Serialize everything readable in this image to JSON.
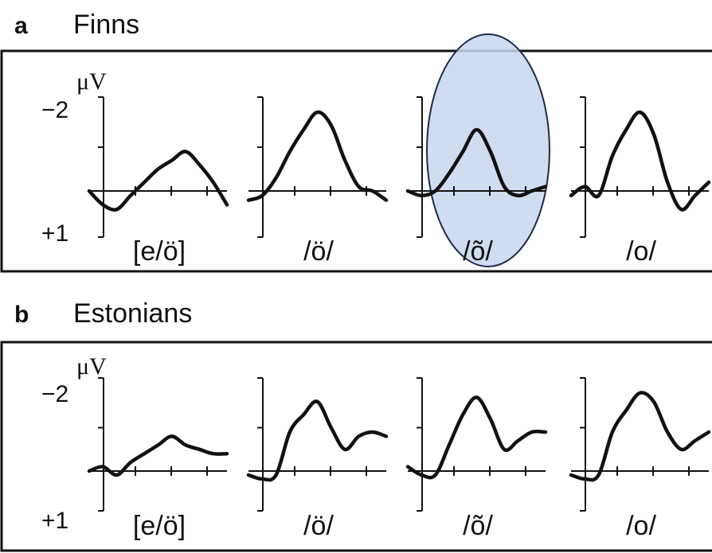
{
  "chart_data": [
    {
      "type": "line",
      "panel": "a",
      "title": "Finns",
      "ylabel": "μV",
      "y_tick_labels": [
        "−2",
        "+1"
      ],
      "ylim": [
        1,
        -2
      ],
      "x": [
        0,
        0.1,
        0.2,
        0.3,
        0.4,
        0.5,
        0.6,
        0.7,
        0.8,
        0.9,
        1.0
      ],
      "series": [
        {
          "name": "[e/ö]",
          "values": [
            0.0,
            0.3,
            0.4,
            0.1,
            -0.2,
            -0.5,
            -0.7,
            -0.9,
            -0.6,
            -0.2,
            0.3
          ],
          "highlighted": false
        },
        {
          "name": "/ö/",
          "values": [
            0.2,
            0.1,
            -0.3,
            -0.9,
            -1.4,
            -1.8,
            -1.5,
            -0.7,
            -0.1,
            0.0,
            0.2
          ],
          "highlighted": false
        },
        {
          "name": "/õ/",
          "values": [
            0.0,
            0.1,
            0.0,
            -0.4,
            -0.9,
            -1.4,
            -0.9,
            -0.1,
            0.1,
            0.0,
            -0.1
          ],
          "highlighted": true
        },
        {
          "name": "/o/",
          "values": [
            0.1,
            -0.1,
            0.1,
            -0.8,
            -1.4,
            -1.8,
            -1.3,
            -0.2,
            0.4,
            0.1,
            -0.2
          ],
          "highlighted": false
        }
      ]
    },
    {
      "type": "line",
      "panel": "b",
      "title": "Estonians",
      "ylabel": "μV",
      "y_tick_labels": [
        "−2",
        "+1"
      ],
      "ylim": [
        1,
        -2
      ],
      "x": [
        0,
        0.1,
        0.2,
        0.3,
        0.4,
        0.5,
        0.6,
        0.7,
        0.8,
        0.9,
        1.0
      ],
      "series": [
        {
          "name": "[e/ö]",
          "values": [
            0.0,
            -0.1,
            0.1,
            -0.2,
            -0.4,
            -0.6,
            -0.8,
            -0.6,
            -0.5,
            -0.4,
            -0.4
          ],
          "highlighted": false
        },
        {
          "name": "/ö/",
          "values": [
            0.1,
            0.2,
            0.1,
            -0.9,
            -1.3,
            -1.6,
            -1.0,
            -0.5,
            -0.8,
            -0.9,
            -0.8
          ],
          "highlighted": false
        },
        {
          "name": "/õ/",
          "values": [
            -0.1,
            0.1,
            0.1,
            -0.6,
            -1.3,
            -1.7,
            -1.2,
            -0.5,
            -0.7,
            -0.9,
            -0.9
          ],
          "highlighted": false
        },
        {
          "name": "/o/",
          "values": [
            0.1,
            0.2,
            0.1,
            -0.9,
            -1.4,
            -1.8,
            -1.6,
            -0.9,
            -0.5,
            -0.7,
            -0.9
          ],
          "highlighted": false
        }
      ]
    }
  ],
  "highlight_color": "#c8d6ec",
  "highlight_stroke": "#1f2a4a"
}
